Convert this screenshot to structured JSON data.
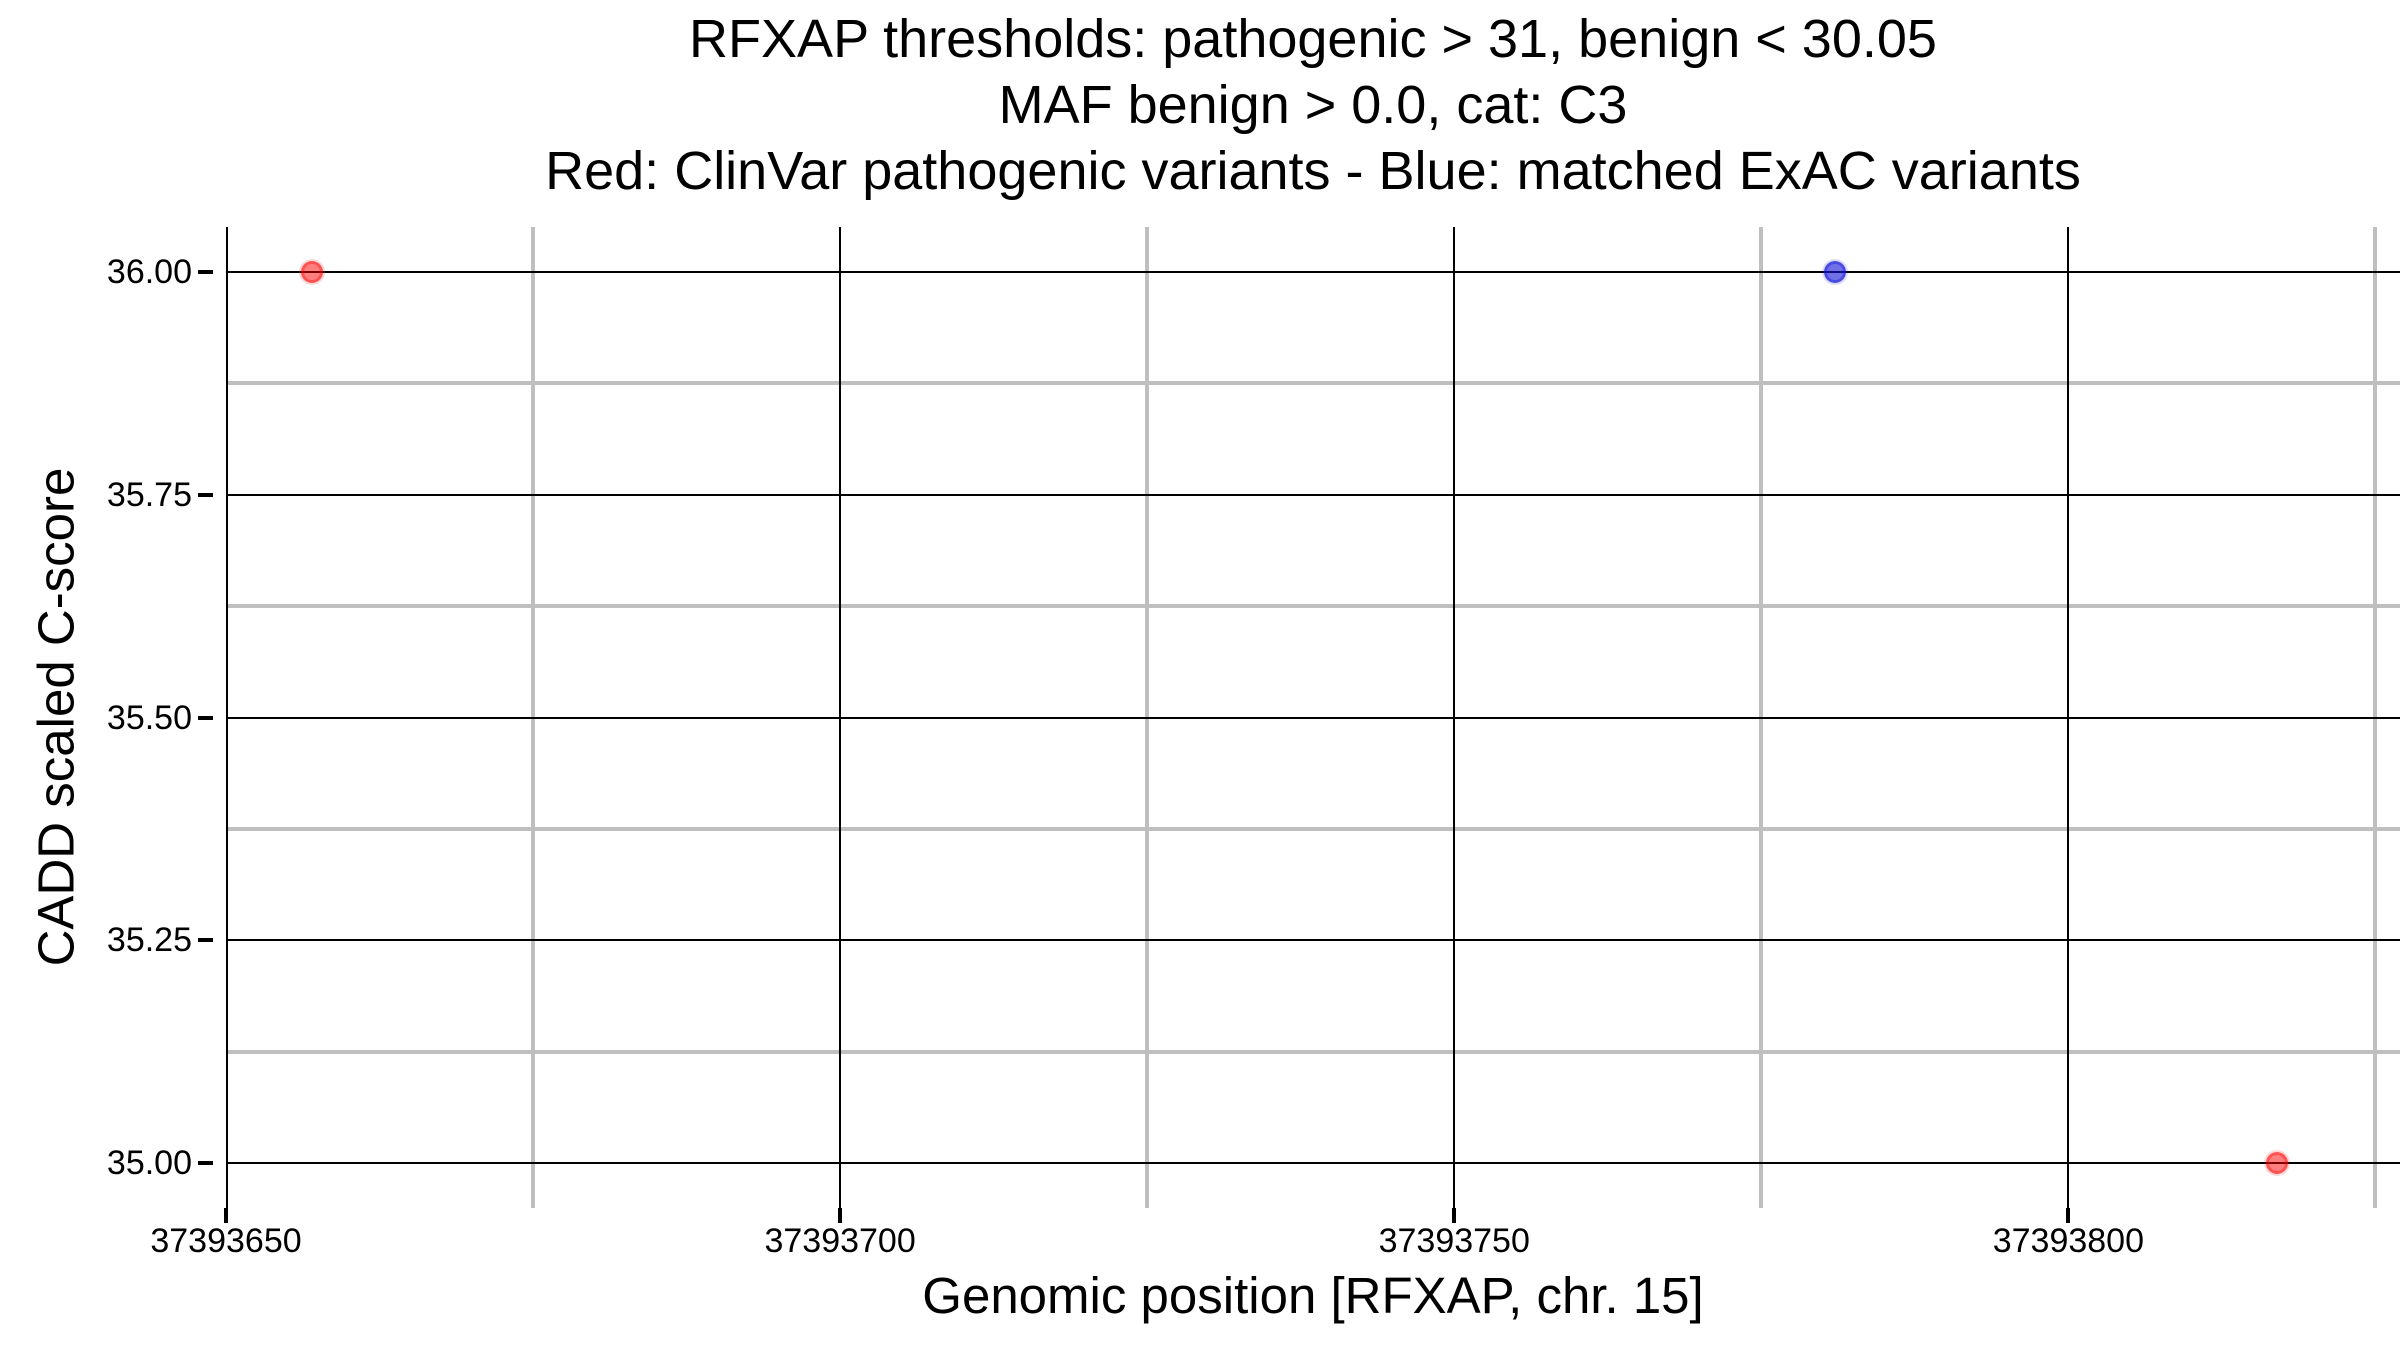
{
  "chart_data": {
    "type": "scatter",
    "title_lines": [
      "RFXAP thresholds: pathogenic > 31, benign < 30.05",
      "MAF benign > 0.0, cat: C3",
      "Red: ClinVar pathogenic variants - Blue: matched ExAC variants"
    ],
    "xlabel": "Genomic position [RFXAP, chr. 15]",
    "ylabel": "CADD scaled C-score",
    "x_domain": [
      37393650,
      37393827
    ],
    "y_domain": [
      34.95,
      36.05
    ],
    "x_ticks": [
      {
        "value": 37393650,
        "label": "37393650"
      },
      {
        "value": 37393700,
        "label": "37393700"
      },
      {
        "value": 37393750,
        "label": "37393750"
      },
      {
        "value": 37393800,
        "label": "37393800"
      }
    ],
    "x_minor_ticks": [
      37393675,
      37393725,
      37393775,
      37393825
    ],
    "y_ticks": [
      {
        "value": 36.0,
        "label": "36.00"
      },
      {
        "value": 35.75,
        "label": "35.75"
      },
      {
        "value": 35.5,
        "label": "35.50"
      },
      {
        "value": 35.25,
        "label": "35.25"
      },
      {
        "value": 35.0,
        "label": "35.00"
      }
    ],
    "y_minor_ticks": [
      35.875,
      35.625,
      35.375,
      35.125
    ],
    "grid": {
      "major_color": "#000000",
      "major_width": 2,
      "minor_color": "#bfbfbf",
      "minor_width": 4,
      "background": "#ffffff"
    },
    "series": [
      {
        "name": "ClinVar pathogenic variants",
        "color_name": "red",
        "color": "#ff0000",
        "fill_alpha": 0.5,
        "edge_alpha": 0.35,
        "points": [
          {
            "x": 37393657,
            "y": 36.0
          },
          {
            "x": 37393817,
            "y": 35.0
          }
        ]
      },
      {
        "name": "matched ExAC variants",
        "color_name": "blue",
        "color": "#1414d9",
        "fill_alpha": 0.6,
        "edge_alpha": 0.4,
        "points": [
          {
            "x": 37393781,
            "y": 36.0
          }
        ]
      }
    ],
    "legend_position": "in-title"
  }
}
